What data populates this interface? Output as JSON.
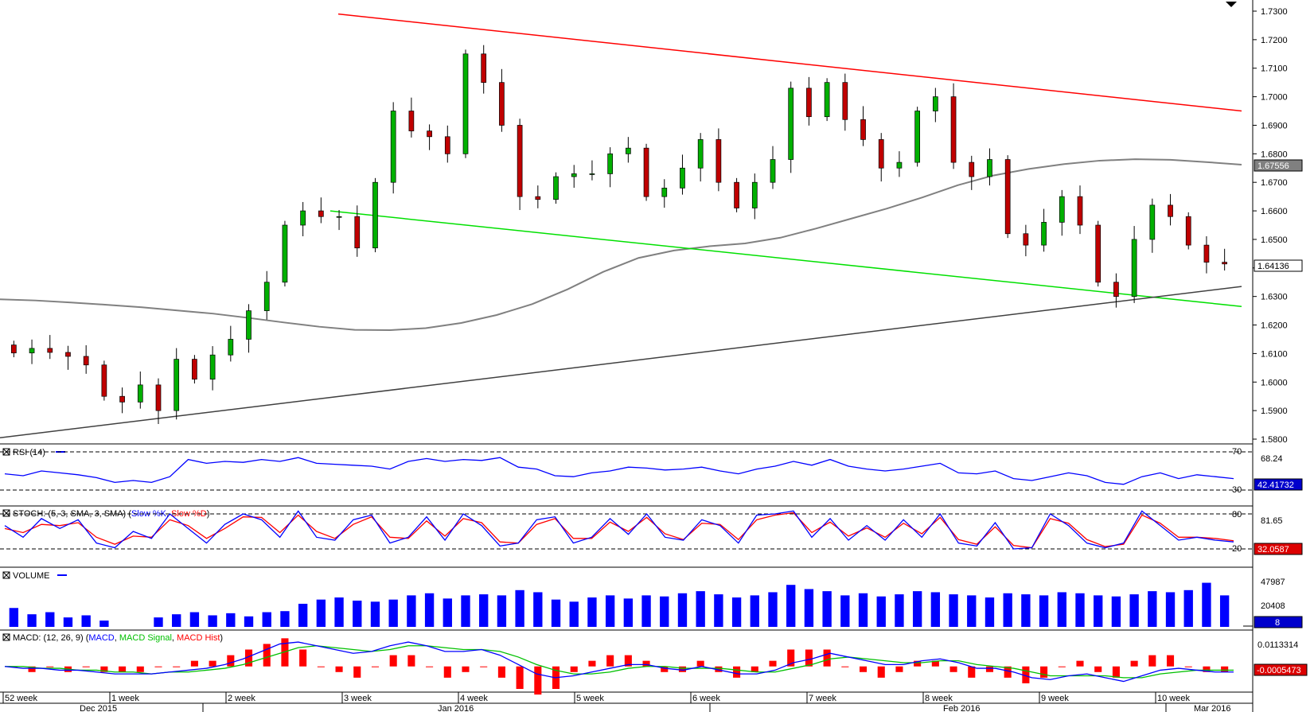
{
  "chart_data": [
    {
      "type": "candlestick",
      "title": "",
      "ylim": [
        1.58,
        1.73
      ],
      "y_ticks": [
        "1.7300",
        "1.7200",
        "1.7100",
        "1.7000",
        "1.6900",
        "1.6800",
        "1.6700",
        "1.6600",
        "1.6500",
        "1.6400",
        "1.6300",
        "1.6200",
        "1.6100",
        "1.6000",
        "1.5900",
        "1.5800"
      ],
      "last_price_label": "1.64136",
      "ma_label": "1.67556",
      "ma_200": [
        1.629,
        1.6286,
        1.6279,
        1.6271,
        1.6262,
        1.6251,
        1.624,
        1.6225,
        1.6209,
        1.6194,
        1.6183,
        1.6182,
        1.6189,
        1.6207,
        1.6235,
        1.6273,
        1.6325,
        1.6386,
        1.6435,
        1.6461,
        1.6476,
        1.6486,
        1.6506,
        1.6538,
        1.6573,
        1.6608,
        1.6647,
        1.669,
        1.6724,
        1.6747,
        1.6764,
        1.6776,
        1.6781,
        1.6779,
        1.6771,
        1.6762
      ],
      "candles_open": [
        1.613,
        1.6102,
        1.6118,
        1.6104,
        1.609,
        1.606,
        1.595,
        1.593,
        1.599,
        1.59,
        1.608,
        1.601,
        1.6095,
        1.615,
        1.625,
        1.635,
        1.655,
        1.66,
        1.658,
        1.658,
        1.647,
        1.67,
        1.695,
        1.688,
        1.686,
        1.68,
        1.715,
        1.705,
        1.69,
        1.665,
        1.664,
        1.672,
        1.673,
        1.673,
        1.68,
        1.682,
        1.665,
        1.668,
        1.675,
        1.685,
        1.67,
        1.661,
        1.67,
        1.678,
        1.703,
        1.693,
        1.705,
        1.692,
        1.685,
        1.675,
        1.677,
        1.695,
        1.7,
        1.677,
        1.672,
        1.678,
        1.652,
        1.648,
        1.656,
        1.665,
        1.655,
        1.635,
        1.63,
        1.65,
        1.662,
        1.658,
        1.648,
        1.642
      ],
      "candles_close": [
        1.6102,
        1.6118,
        1.6104,
        1.609,
        1.606,
        1.595,
        1.593,
        1.599,
        1.59,
        1.608,
        1.601,
        1.6095,
        1.615,
        1.625,
        1.635,
        1.655,
        1.66,
        1.658,
        1.658,
        1.647,
        1.67,
        1.695,
        1.688,
        1.686,
        1.68,
        1.715,
        1.705,
        1.69,
        1.665,
        1.664,
        1.672,
        1.673,
        1.673,
        1.68,
        1.682,
        1.665,
        1.668,
        1.675,
        1.685,
        1.67,
        1.661,
        1.67,
        1.678,
        1.703,
        1.693,
        1.705,
        1.692,
        1.685,
        1.675,
        1.677,
        1.695,
        1.7,
        1.677,
        1.672,
        1.678,
        1.652,
        1.648,
        1.656,
        1.665,
        1.655,
        1.635,
        1.63,
        1.65,
        1.662,
        1.658,
        1.648,
        1.642,
        1.6414
      ],
      "resistance_line": {
        "from": 1.729,
        "to": 1.695
      },
      "lower_channel_line": {
        "from": 1.66,
        "to": 1.6265
      },
      "support_line": {
        "from": 1.5805,
        "to": 1.6335
      }
    },
    {
      "type": "line",
      "title": "RSI (14)",
      "ylim": [
        30,
        70
      ],
      "levels": [
        "70",
        "30"
      ],
      "current_label": "42.41732",
      "top_label": "68.24",
      "values": [
        47,
        45,
        50,
        48,
        46,
        43,
        38,
        40,
        38,
        44,
        62,
        58,
        60,
        59,
        62,
        60,
        64,
        58,
        57,
        56,
        55,
        52,
        60,
        63,
        60,
        62,
        61,
        64,
        54,
        52,
        45,
        44,
        48,
        50,
        54,
        53,
        51,
        52,
        54,
        50,
        47,
        52,
        55,
        60,
        56,
        62,
        55,
        52,
        50,
        52,
        55,
        58,
        48,
        47,
        50,
        42,
        40,
        44,
        48,
        45,
        38,
        36,
        44,
        48,
        42,
        46,
        44,
        42
      ]
    },
    {
      "type": "line",
      "title": "STOCH (5, 3, SMA, 3, SMA)",
      "series": [
        {
          "name": "Slow %K",
          "values": [
            60,
            40,
            72,
            55,
            70,
            30,
            22,
            50,
            38,
            80,
            55,
            30,
            62,
            80,
            70,
            40,
            85,
            40,
            35,
            70,
            78,
            30,
            40,
            75,
            35,
            80,
            60,
            25,
            30,
            70,
            75,
            30,
            40,
            72,
            45,
            80,
            40,
            35,
            70,
            60,
            30,
            78,
            80,
            85,
            40,
            72,
            35,
            60,
            35,
            70,
            40,
            80,
            30,
            25,
            65,
            20,
            22,
            80,
            60,
            30,
            22,
            30,
            85,
            60,
            35,
            40,
            35,
            32
          ]
        },
        {
          "name": "Slow %D",
          "values": [
            55,
            48,
            62,
            60,
            65,
            40,
            28,
            42,
            40,
            70,
            60,
            38,
            55,
            75,
            74,
            48,
            78,
            50,
            38,
            62,
            75,
            40,
            38,
            68,
            42,
            72,
            65,
            32,
            30,
            62,
            72,
            38,
            38,
            66,
            50,
            74,
            46,
            36,
            64,
            62,
            36,
            70,
            78,
            82,
            48,
            66,
            42,
            56,
            40,
            64,
            46,
            74,
            36,
            28,
            58,
            26,
            22,
            72,
            64,
            36,
            24,
            28,
            78,
            64,
            40,
            40,
            38,
            34
          ]
        }
      ],
      "levels": [
        "80",
        "20"
      ],
      "current_label": "32.0587",
      "top_label": "81.65"
    },
    {
      "type": "bar",
      "title": "VOLUME",
      "ylim": [
        0,
        50000
      ],
      "current_label": "8",
      "top_label": "47987",
      "mid_label": "20408",
      "values": [
        18000,
        12000,
        14000,
        9000,
        11000,
        6000,
        0,
        0,
        9000,
        12000,
        14000,
        11000,
        13000,
        10000,
        14000,
        15000,
        22000,
        26000,
        28000,
        25000,
        24000,
        26000,
        30000,
        32000,
        27000,
        30000,
        31000,
        30000,
        35000,
        33000,
        26000,
        24000,
        28000,
        30000,
        27000,
        30000,
        29000,
        32000,
        34000,
        31000,
        28000,
        30000,
        33000,
        40000,
        36000,
        34000,
        30000,
        32000,
        29000,
        31000,
        34000,
        33000,
        31000,
        30000,
        28000,
        32000,
        31000,
        30000,
        33000,
        32000,
        30000,
        29000,
        31000,
        34000,
        33000,
        35000,
        42000,
        30000
      ]
    },
    {
      "type": "line",
      "title": "MACD: (12, 26, 9)",
      "series": [
        {
          "name": "MACD",
          "values": [
            0.0,
            -0.001,
            -0.001,
            -0.002,
            -0.002,
            -0.003,
            -0.004,
            -0.004,
            -0.004,
            -0.003,
            -0.002,
            -0.001,
            0.001,
            0.004,
            0.008,
            0.012,
            0.013,
            0.011,
            0.009,
            0.007,
            0.008,
            0.011,
            0.013,
            0.011,
            0.008,
            0.008,
            0.009,
            0.006,
            0.001,
            -0.004,
            -0.006,
            -0.005,
            -0.003,
            -0.001,
            0.001,
            0.001,
            -0.001,
            -0.002,
            0.0,
            -0.002,
            -0.004,
            -0.004,
            -0.002,
            0.002,
            0.004,
            0.007,
            0.005,
            0.003,
            0.001,
            0.001,
            0.003,
            0.004,
            0.002,
            -0.001,
            -0.001,
            -0.003,
            -0.006,
            -0.007,
            -0.005,
            -0.004,
            -0.006,
            -0.008,
            -0.005,
            -0.002,
            -0.001,
            -0.002,
            -0.003,
            -0.003
          ]
        },
        {
          "name": "MACD Signal",
          "values": [
            0.0,
            0.0,
            -0.001,
            -0.001,
            -0.002,
            -0.002,
            -0.003,
            -0.003,
            -0.004,
            -0.003,
            -0.003,
            -0.002,
            -0.001,
            0.001,
            0.004,
            0.007,
            0.01,
            0.011,
            0.01,
            0.009,
            0.008,
            0.009,
            0.011,
            0.011,
            0.01,
            0.009,
            0.009,
            0.008,
            0.005,
            0.001,
            -0.002,
            -0.004,
            -0.004,
            -0.003,
            -0.001,
            0.0,
            0.0,
            -0.001,
            -0.001,
            -0.001,
            -0.002,
            -0.003,
            -0.003,
            -0.001,
            0.001,
            0.004,
            0.005,
            0.004,
            0.003,
            0.002,
            0.002,
            0.003,
            0.003,
            0.001,
            0.0,
            -0.001,
            -0.003,
            -0.005,
            -0.005,
            -0.005,
            -0.005,
            -0.006,
            -0.006,
            -0.004,
            -0.003,
            -0.002,
            -0.002,
            -0.002
          ]
        }
      ],
      "top_label": "0.0113314",
      "current_label": "-0.0005473"
    }
  ],
  "panels": {
    "rsi_label": "RSI (14)",
    "stoch_label_prefix": "STOCH: (5, 3, SMA, 3, SMA) (",
    "stoch_k_label": "Slow %K",
    "stoch_d_label": "Slow %D",
    "volume_label": "VOLUME",
    "macd_label_prefix": "MACD: (12, 26, 9) (",
    "macd_line_label": "MACD",
    "macd_signal_label": "MACD Signal",
    "macd_hist_label": "MACD Hist"
  },
  "x_axis": {
    "weeks": [
      "52 week",
      "1 week",
      "2 week",
      "3 week",
      "4 week",
      "5 week",
      "6 week",
      "7 week",
      "8 week",
      "9 week",
      "10 week"
    ],
    "months": [
      "Dec 2015",
      "Jan 2016",
      "Feb 2016",
      "Mar 2016"
    ]
  },
  "colors": {
    "up": "#00b000",
    "down": "#c00000",
    "ma": "#808080",
    "resistance": "#ff0000",
    "channel": "#00e000",
    "support": "#404040",
    "rsi": "#0000ff",
    "stoch_k": "#0000ff",
    "stoch_d": "#ff0000",
    "volume": "#0000ff",
    "macd": "#0000ff",
    "macd_signal": "#00c000",
    "macd_hist": "#ff0000"
  }
}
